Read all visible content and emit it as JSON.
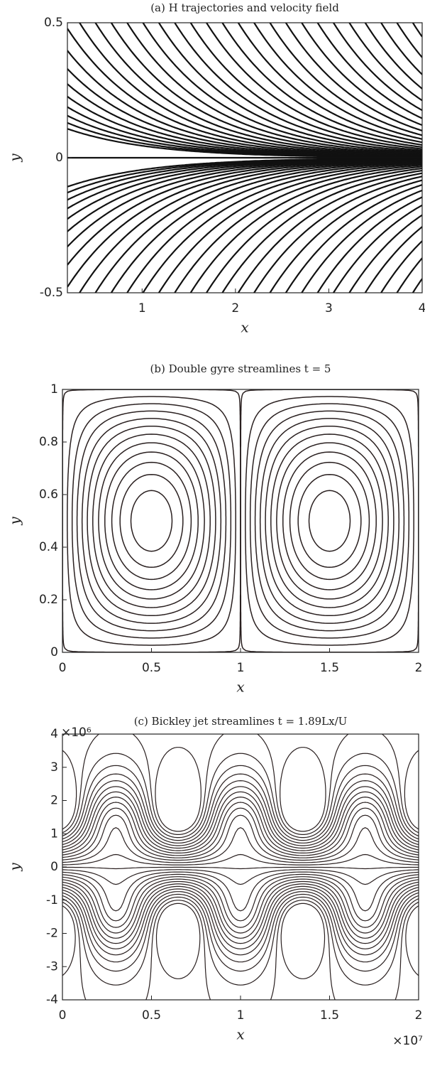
{
  "chart_data": [
    {
      "type": "hyperbolic",
      "title": "(a) H trajectories and velocity field",
      "xlabel": "x",
      "ylabel": "y",
      "xlim": [
        0.2,
        4
      ],
      "ylim": [
        -0.5,
        0.5
      ],
      "xticks": [
        1,
        2,
        3,
        4
      ],
      "yticks": [
        -0.5,
        0,
        0.5
      ]
    },
    {
      "type": "double-gyre",
      "title": "(b) Double gyre streamlines t = 5",
      "xlabel": "x",
      "ylabel": "y",
      "xlim": [
        0,
        2
      ],
      "ylim": [
        0,
        1
      ],
      "xticks": [
        0,
        0.5,
        1,
        1.5,
        2
      ],
      "yticks": [
        0,
        0.2,
        0.4,
        0.6,
        0.8,
        1
      ]
    },
    {
      "type": "bickley",
      "title": "(c) Bickley jet streamlines t = 1.89Lx/U",
      "xlabel": "x",
      "ylabel": "y",
      "xlim": [
        0,
        2
      ],
      "ylim": [
        -4,
        4
      ],
      "xticks": [
        0,
        0.5,
        1,
        1.5,
        2
      ],
      "yticks": [
        -4,
        -3,
        -2,
        -1,
        0,
        1,
        2,
        3,
        4
      ],
      "x_multiplier": "×10⁷",
      "y_multiplier": "×10⁶"
    }
  ]
}
